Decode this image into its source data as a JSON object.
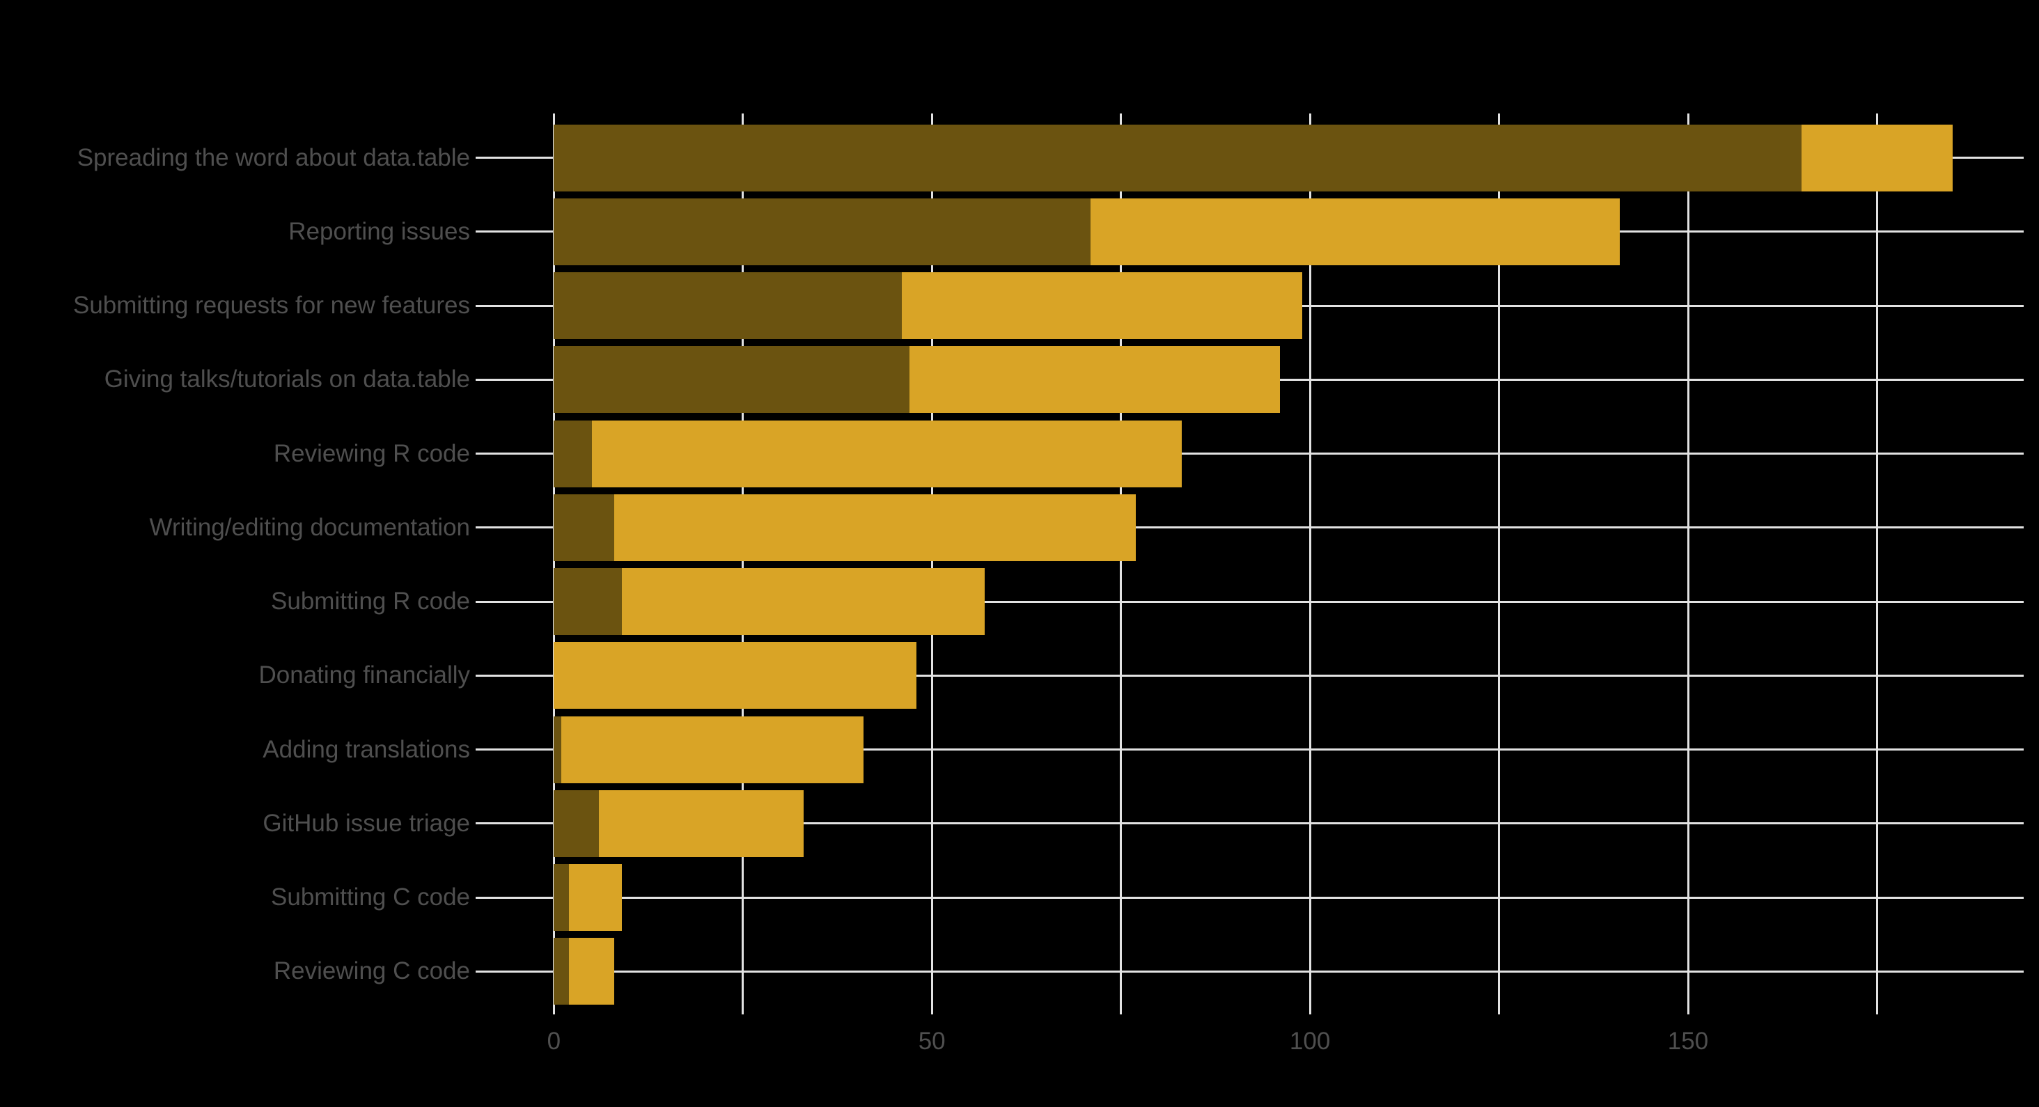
{
  "chart_data": {
    "type": "bar",
    "orientation": "horizontal",
    "stacked": true,
    "title": "",
    "xlabel": "",
    "ylabel": "",
    "grid": true,
    "legend": "none",
    "background_color": "#000000",
    "gridline_color": "#E2E2E2",
    "text_color": "#4F4F4F",
    "categories": [
      "Spreading the word about data.table",
      "Reporting issues",
      "Submitting requests for new features",
      "Giving talks/tutorials on data.table",
      "Reviewing R code",
      "Writing/editing documentation",
      "Submitting R code",
      "Donating financially",
      "Adding translations",
      "GitHub issue triage",
      "Submitting C code",
      "Reviewing C code"
    ],
    "series": [
      {
        "name": "series_1_dark_olive",
        "color": "#6B5310",
        "values": [
          165,
          71,
          46,
          47,
          5,
          8,
          9,
          0,
          1,
          6,
          2,
          2
        ]
      },
      {
        "name": "series_2_gold",
        "color": "#D9A426",
        "values": [
          20,
          70,
          53,
          49,
          78,
          69,
          48,
          48,
          40,
          27,
          7,
          6
        ]
      }
    ],
    "stack_totals": [
      185,
      141,
      99,
      96,
      83,
      77,
      57,
      48,
      41,
      33,
      9,
      8
    ],
    "x_axis": {
      "tick_labels": [
        "0",
        "50",
        "100",
        "150"
      ],
      "tick_values": [
        0,
        50,
        100,
        150
      ],
      "gridline_values": [
        0,
        25,
        50,
        75,
        100,
        125,
        150,
        175
      ],
      "xlim": [
        -9.25,
        194.35
      ]
    }
  }
}
